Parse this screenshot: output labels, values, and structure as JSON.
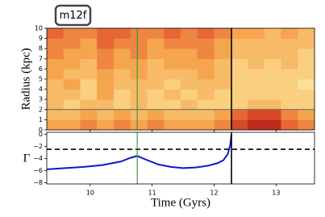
{
  "chart_data": [
    {
      "type": "heatmap",
      "label": "m12f",
      "ylabel": "Radius (kpc)",
      "xlim": [
        9.3,
        13.62
      ],
      "ylim": [
        0,
        10
      ],
      "xticks": [
        10,
        11,
        12,
        13
      ],
      "yticks": [
        0,
        1,
        2,
        3,
        4,
        5,
        6,
        7,
        8,
        9,
        10
      ],
      "x_edges": [
        9.3,
        9.57,
        9.84,
        10.11,
        10.38,
        10.65,
        10.92,
        11.19,
        11.46,
        11.73,
        12.0,
        12.27,
        12.54,
        12.81,
        13.08,
        13.35,
        13.62
      ],
      "r_edges": [
        0,
        1,
        2,
        3,
        4,
        5,
        6,
        7,
        8,
        9,
        10
      ],
      "colormap": [
        "#fffad2",
        "#fbd98c",
        "#f5a54e",
        "#e4572e",
        "#a50f15"
      ],
      "z": [
        [
          0.5,
          0.5,
          0.6,
          0.5,
          0.6,
          0.5,
          0.6,
          0.5,
          0.5,
          0.5,
          0.6,
          0.8,
          0.9,
          0.9,
          0.7,
          0.6
        ],
        [
          0.4,
          0.4,
          0.5,
          0.4,
          0.5,
          0.4,
          0.5,
          0.4,
          0.4,
          0.4,
          0.5,
          0.7,
          0.8,
          0.8,
          0.6,
          0.5
        ],
        [
          0.4,
          0.3,
          0.4,
          0.4,
          0.3,
          0.4,
          0.3,
          0.3,
          0.4,
          0.3,
          0.3,
          0.3,
          0.4,
          0.4,
          0.3,
          0.3
        ],
        [
          0.4,
          0.4,
          0.3,
          0.5,
          0.3,
          0.4,
          0.3,
          0.4,
          0.3,
          0.4,
          0.3,
          0.3,
          0.3,
          0.3,
          0.3,
          0.3
        ],
        [
          0.4,
          0.5,
          0.3,
          0.5,
          0.4,
          0.4,
          0.4,
          0.3,
          0.4,
          0.4,
          0.4,
          0.3,
          0.3,
          0.3,
          0.3,
          0.2
        ],
        [
          0.5,
          0.4,
          0.4,
          0.5,
          0.4,
          0.5,
          0.4,
          0.4,
          0.4,
          0.5,
          0.4,
          0.3,
          0.3,
          0.3,
          0.3,
          0.3
        ],
        [
          0.5,
          0.5,
          0.4,
          0.6,
          0.5,
          0.5,
          0.4,
          0.5,
          0.5,
          0.5,
          0.4,
          0.3,
          0.4,
          0.3,
          0.4,
          0.3
        ],
        [
          0.6,
          0.5,
          0.5,
          0.6,
          0.5,
          0.6,
          0.5,
          0.5,
          0.5,
          0.6,
          0.5,
          0.4,
          0.4,
          0.4,
          0.4,
          0.3
        ],
        [
          0.6,
          0.6,
          0.5,
          0.7,
          0.6,
          0.6,
          0.5,
          0.6,
          0.6,
          0.6,
          0.5,
          0.4,
          0.4,
          0.4,
          0.4,
          0.4
        ],
        [
          0.7,
          0.6,
          0.6,
          0.7,
          0.7,
          0.6,
          0.6,
          0.7,
          0.6,
          0.7,
          0.6,
          0.5,
          0.5,
          0.4,
          0.5,
          0.4
        ]
      ],
      "hlines": [
        {
          "y": 2,
          "color": "#555555"
        }
      ],
      "vlines": [
        {
          "x": 10.76,
          "color": "#3f9a3f"
        },
        {
          "x": 12.28,
          "color": "#000000"
        }
      ]
    },
    {
      "type": "line",
      "ylabel": "Γ",
      "xlabel": "Time (Gyrs)",
      "xlim": [
        9.3,
        13.62
      ],
      "ylim": [
        -8.2,
        0.3
      ],
      "xticks": [
        10,
        11,
        12,
        13
      ],
      "yticks": [
        {
          "value": 0,
          "label": "0"
        },
        {
          "value": -2,
          "label": "−2"
        },
        {
          "value": -4,
          "label": "−4"
        },
        {
          "value": -6,
          "label": "−6"
        },
        {
          "value": -8,
          "label": "−8"
        }
      ],
      "x": [
        9.3,
        9.6,
        9.9,
        10.2,
        10.5,
        10.65,
        10.76,
        10.9,
        11.1,
        11.3,
        11.5,
        11.7,
        11.9,
        12.05,
        12.15,
        12.22,
        12.26,
        12.28
      ],
      "values": [
        -5.8,
        -5.6,
        -5.4,
        -5.1,
        -4.5,
        -3.9,
        -3.6,
        -4.2,
        -5.0,
        -5.4,
        -5.6,
        -5.5,
        -5.2,
        -4.8,
        -4.3,
        -3.3,
        -1.8,
        0
      ],
      "color": "#1414d2",
      "hlines": [
        {
          "y": -2.5,
          "color": "#000000",
          "dashed": true
        }
      ],
      "vlines": [
        {
          "x": 10.76,
          "color": "#3f9a3f"
        },
        {
          "x": 12.28,
          "color": "#000000"
        }
      ]
    }
  ]
}
